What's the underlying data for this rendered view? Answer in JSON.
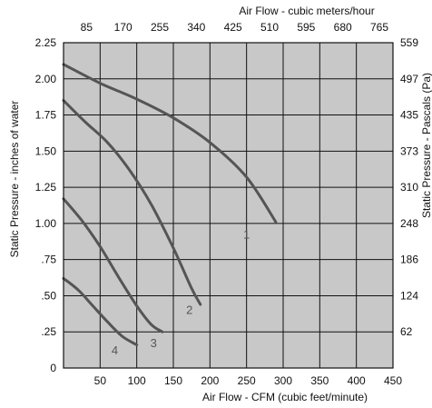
{
  "chart_data": {
    "type": "line",
    "title": "",
    "xlabel": "Air Flow - CFM (cubic feet/minute)",
    "x2label": "Air Flow - cubic meters/hour",
    "ylabel": "Static Pressure - inches of water",
    "y2label": "Static Pressure - Pascals (Pa)",
    "xlim": [
      0,
      450
    ],
    "ylim": [
      0,
      2.25
    ],
    "grid": true,
    "background": "#c8c8c8",
    "line_color": "#555555",
    "x_ticks": [
      50,
      100,
      150,
      200,
      250,
      300,
      350,
      400,
      450
    ],
    "x_tick_labels": [
      "50",
      "100",
      "150",
      "200",
      "250",
      "300",
      "350",
      "400",
      "450"
    ],
    "x2_ticks": [
      50,
      100,
      150,
      200,
      250,
      300,
      350,
      400,
      450
    ],
    "x2_tick_labels": [
      "85",
      "170",
      "255",
      "340",
      "425",
      "510",
      "595",
      "680",
      "765"
    ],
    "y_ticks": [
      0,
      0.25,
      0.5,
      0.75,
      1.0,
      1.25,
      1.5,
      1.75,
      2.0,
      2.25
    ],
    "y_tick_labels": [
      "0",
      ".25",
      ".50",
      ".75",
      "1.00",
      "1.25",
      "1.50",
      "1.75",
      "2.00",
      "2.25"
    ],
    "y2_ticks": [
      0.25,
      0.5,
      0.75,
      1.0,
      1.25,
      1.5,
      1.75,
      2.0,
      2.25
    ],
    "y2_tick_labels": [
      "62",
      "124",
      "186",
      "248",
      "310",
      "373",
      "435",
      "497",
      "559"
    ],
    "series": [
      {
        "name": "1",
        "label_at": [
          250,
          0.92
        ],
        "x": [
          0,
          50,
          100,
          150,
          200,
          250,
          290
        ],
        "y": [
          2.1,
          1.97,
          1.86,
          1.73,
          1.56,
          1.32,
          1.01
        ]
      },
      {
        "name": "2",
        "label_at": [
          172,
          0.4
        ],
        "x": [
          0,
          30,
          60,
          90,
          120,
          150,
          175,
          187
        ],
        "y": [
          1.85,
          1.7,
          1.56,
          1.37,
          1.13,
          0.83,
          0.55,
          0.44
        ]
      },
      {
        "name": "3",
        "label_at": [
          123,
          0.17
        ],
        "x": [
          0,
          25,
          50,
          75,
          100,
          120,
          135
        ],
        "y": [
          1.17,
          1.02,
          0.84,
          0.63,
          0.43,
          0.3,
          0.25
        ]
      },
      {
        "name": "4",
        "label_at": [
          70,
          0.12
        ],
        "x": [
          0,
          20,
          40,
          60,
          80,
          100
        ],
        "y": [
          0.62,
          0.54,
          0.43,
          0.32,
          0.22,
          0.16
        ]
      }
    ]
  }
}
